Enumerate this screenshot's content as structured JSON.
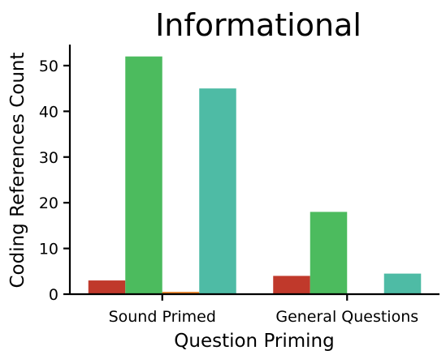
{
  "chart_data": {
    "type": "bar",
    "title": "Informational",
    "xlabel": "Question Priming",
    "ylabel": "Coding References Count",
    "categories": [
      "Sound Primed",
      "General Questions"
    ],
    "series": [
      {
        "color": "#c0392b",
        "values": [
          3,
          4
        ]
      },
      {
        "color": "#4cbb5e",
        "values": [
          52,
          18
        ]
      },
      {
        "color": "#e67e22",
        "values": [
          0.5,
          0
        ]
      },
      {
        "color": "#4ebba5",
        "values": [
          45,
          4.5
        ]
      }
    ],
    "ylim": [
      0,
      54.6
    ],
    "yticks": [
      0,
      10,
      20,
      30,
      40,
      50
    ],
    "grid": false,
    "legend": "none"
  }
}
